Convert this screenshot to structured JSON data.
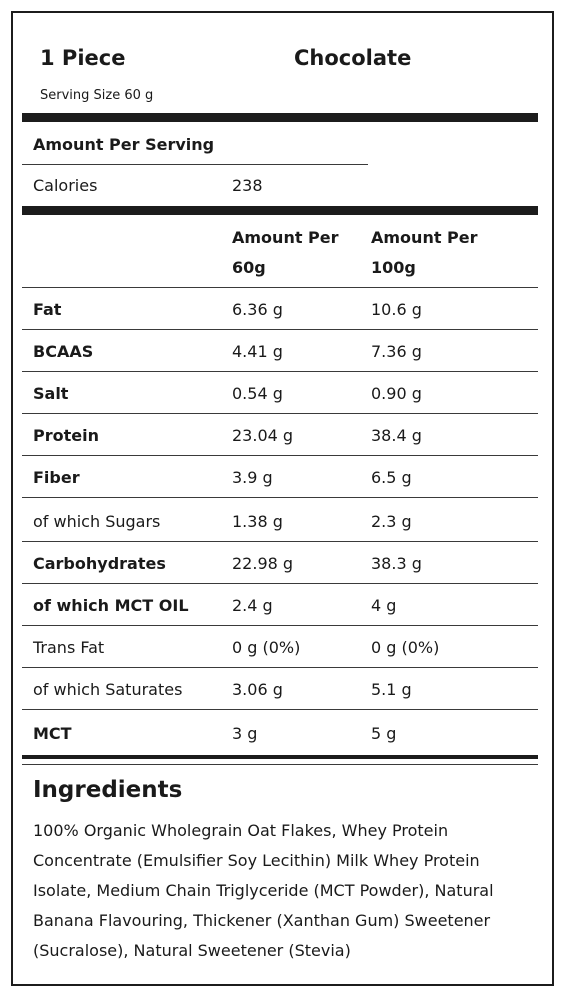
{
  "header": {
    "portion": "1 Piece",
    "flavor": "Chocolate",
    "serving_size": "Serving Size 60 g"
  },
  "amount_per_serving": "Amount Per Serving",
  "calories": {
    "label": "Calories",
    "value": "238"
  },
  "columns": {
    "col1": {
      "line1": "Amount Per",
      "line2": "60g"
    },
    "col2": {
      "line1": "Amount Per",
      "line2": "100g"
    }
  },
  "rows": [
    {
      "label": "Fat",
      "v60": "6.36 g",
      "v100": "10.6 g"
    },
    {
      "label": "BCAAS",
      "v60": "4.41 g",
      "v100": "7.36 g"
    },
    {
      "label": "Salt",
      "v60": "0.54 g",
      "v100": "0.90 g"
    },
    {
      "label": "Protein",
      "v60": "23.04 g",
      "v100": "38.4 g"
    },
    {
      "label": "Fiber",
      "v60": "3.9 g",
      "v100": "6.5 g"
    },
    {
      "label": "of which Sugars",
      "v60": "1.38 g",
      "v100": "2.3 g"
    },
    {
      "label": "Carbohydrates",
      "v60": "22.98 g",
      "v100": "38.3 g"
    },
    {
      "label": "of which MCT OIL",
      "v60": "2.4 g",
      "v100": "4 g"
    },
    {
      "label": "Trans Fat",
      "v60": "0 g (0%)",
      "v100": "0 g (0%)"
    },
    {
      "label": "of which Saturates",
      "v60": "3.06 g",
      "v100": "5.1 g"
    },
    {
      "label": "MCT",
      "v60": "3 g",
      "v100": "5 g"
    }
  ],
  "ingredients": {
    "title": "Ingredients",
    "text": "100% Organic Wholegrain Oat Flakes, Whey Protein Concentrate (Emulsifier Soy Lecithin) Milk Whey Protein Isolate, Medium Chain Triglyceride (MCT Powder), Natural Banana Flavouring, Thickener (Xanthan Gum) Sweetener (Sucralose), Natural Sweetener (Stevia)"
  }
}
